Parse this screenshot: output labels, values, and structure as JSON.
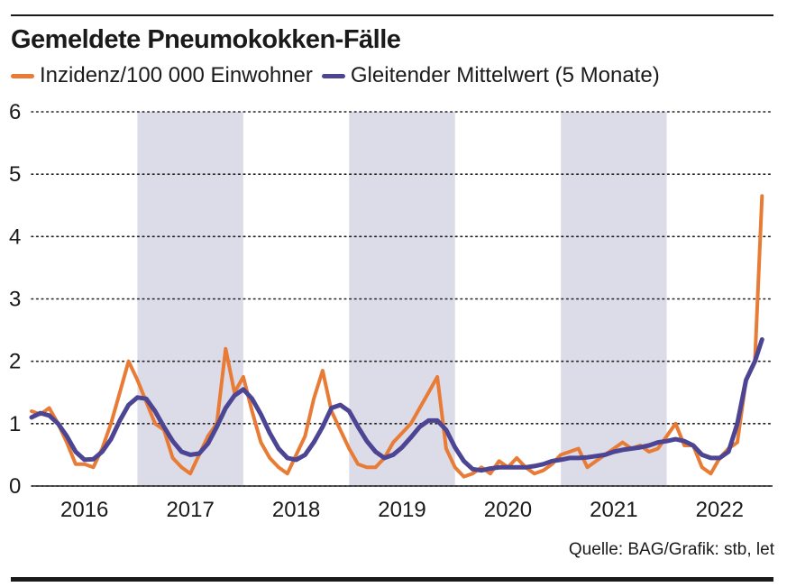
{
  "title": "Gemeldete Pneumokokken-Fälle",
  "source": "Quelle: BAG/Grafik: stb, let",
  "colors": {
    "incidence": "#e87b35",
    "moving_average": "#4b4594",
    "shade": "#dcdbe8",
    "grid": "#222222",
    "text": "#1a1a1a"
  },
  "chart_data": {
    "type": "line",
    "title": "Gemeldete Pneumokokken-Fälle",
    "x_unit": "month index (0 = Jan 2016)",
    "xlim": [
      0,
      84
    ],
    "ylim": [
      0,
      6
    ],
    "yticks": [
      "0",
      "1",
      "2",
      "3",
      "4",
      "5",
      "6"
    ],
    "year_labels": [
      "2016",
      "2017",
      "2018",
      "2019",
      "2020",
      "2021",
      "2022"
    ],
    "shaded_years": [
      "2017",
      "2019",
      "2021"
    ],
    "grid": "horizontal dotted",
    "legend_position": "top",
    "series": [
      {
        "name": "Inzidenz/100 000 Einwohner",
        "color": "#e87b35",
        "x": [
          0,
          1,
          2,
          3,
          4,
          5,
          6,
          7,
          8,
          9,
          10,
          11,
          12,
          13,
          14,
          15,
          16,
          17,
          18,
          19,
          20,
          21,
          22,
          23,
          24,
          25,
          26,
          27,
          28,
          29,
          30,
          31,
          32,
          33,
          34,
          35,
          36,
          37,
          38,
          39,
          40,
          41,
          42,
          43,
          44,
          45,
          46,
          47,
          48,
          49,
          50,
          51,
          52,
          53,
          54,
          55,
          56,
          57,
          58,
          59,
          60,
          61,
          62,
          63,
          64,
          65,
          66,
          67,
          68,
          69,
          70,
          71,
          72,
          73,
          74,
          75,
          76,
          77,
          78,
          79,
          80,
          81,
          82,
          82.8
        ],
        "y": [
          1.2,
          1.15,
          1.25,
          1.0,
          0.7,
          0.35,
          0.35,
          0.3,
          0.6,
          1.0,
          1.5,
          2.0,
          1.7,
          1.35,
          1.0,
          0.9,
          0.45,
          0.3,
          0.2,
          0.5,
          0.8,
          1.0,
          2.2,
          1.5,
          1.75,
          1.2,
          0.7,
          0.45,
          0.3,
          0.2,
          0.5,
          0.8,
          1.4,
          1.85,
          1.2,
          0.9,
          0.6,
          0.35,
          0.3,
          0.3,
          0.45,
          0.7,
          0.85,
          1.0,
          1.25,
          1.5,
          1.75,
          0.6,
          0.3,
          0.15,
          0.2,
          0.3,
          0.2,
          0.4,
          0.3,
          0.45,
          0.3,
          0.2,
          0.25,
          0.35,
          0.5,
          0.55,
          0.6,
          0.3,
          0.4,
          0.5,
          0.6,
          0.7,
          0.6,
          0.65,
          0.55,
          0.6,
          0.8,
          1.0,
          0.65,
          0.65,
          0.3,
          0.2,
          0.45,
          0.6,
          0.7,
          1.7,
          2.0,
          4.65
        ]
      },
      {
        "name": "Gleitender Mittelwert (5 Monate)",
        "color": "#4b4594",
        "x": [
          0,
          1,
          2,
          3,
          4,
          5,
          6,
          7,
          8,
          9,
          10,
          11,
          12,
          13,
          14,
          15,
          16,
          17,
          18,
          19,
          20,
          21,
          22,
          23,
          24,
          25,
          26,
          27,
          28,
          29,
          30,
          31,
          32,
          33,
          34,
          35,
          36,
          37,
          38,
          39,
          40,
          41,
          42,
          43,
          44,
          45,
          46,
          47,
          48,
          49,
          50,
          51,
          52,
          53,
          54,
          55,
          56,
          57,
          58,
          59,
          60,
          61,
          62,
          63,
          64,
          65,
          66,
          67,
          68,
          69,
          70,
          71,
          72,
          73,
          74,
          75,
          76,
          77,
          78,
          79,
          80,
          81,
          82,
          82.8
        ],
        "y": [
          1.1,
          1.17,
          1.13,
          1.0,
          0.8,
          0.55,
          0.42,
          0.43,
          0.55,
          0.75,
          1.05,
          1.3,
          1.42,
          1.4,
          1.2,
          0.95,
          0.72,
          0.55,
          0.5,
          0.52,
          0.68,
          0.95,
          1.25,
          1.45,
          1.55,
          1.4,
          1.15,
          0.85,
          0.6,
          0.45,
          0.42,
          0.5,
          0.7,
          0.95,
          1.25,
          1.3,
          1.2,
          0.95,
          0.72,
          0.55,
          0.45,
          0.5,
          0.62,
          0.78,
          0.95,
          1.05,
          1.05,
          0.9,
          0.62,
          0.4,
          0.27,
          0.25,
          0.28,
          0.3,
          0.3,
          0.3,
          0.3,
          0.32,
          0.35,
          0.4,
          0.42,
          0.45,
          0.45,
          0.46,
          0.48,
          0.5,
          0.55,
          0.58,
          0.6,
          0.62,
          0.65,
          0.7,
          0.72,
          0.75,
          0.72,
          0.65,
          0.5,
          0.45,
          0.45,
          0.55,
          1.0,
          1.7,
          2.0,
          2.35
        ]
      }
    ]
  }
}
